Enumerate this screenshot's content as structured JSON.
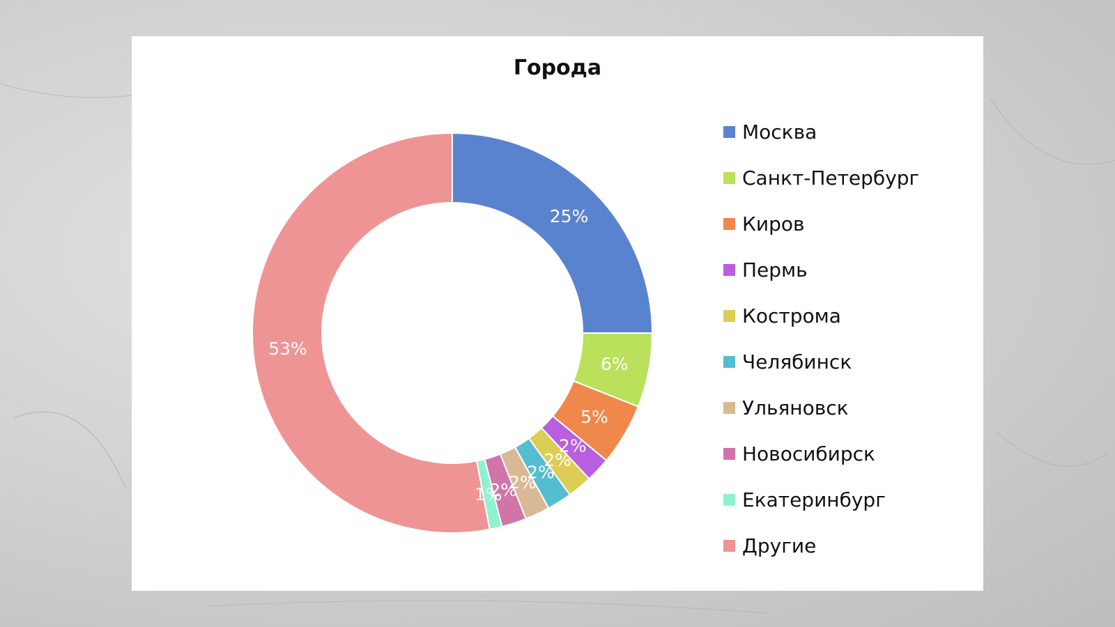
{
  "chart_data": {
    "type": "pie",
    "variant": "donut",
    "title": "Города",
    "legend_position": "right",
    "slices": [
      {
        "name": "Москва",
        "value": 25,
        "label": "25%",
        "color": "#5a83cf"
      },
      {
        "name": "Санкт-Петербург",
        "value": 6,
        "label": "6%",
        "color": "#bbe05b"
      },
      {
        "name": "Киров",
        "value": 5,
        "label": "5%",
        "color": "#f0884b"
      },
      {
        "name": "Пермь",
        "value": 2,
        "label": "2%",
        "color": "#b85fe0"
      },
      {
        "name": "Кострома",
        "value": 2,
        "label": "2%",
        "color": "#ddcd55"
      },
      {
        "name": "Челябинск",
        "value": 2,
        "label": "2%",
        "color": "#55bdd0"
      },
      {
        "name": "Ульяновск",
        "value": 2,
        "label": "2%",
        "color": "#d8b993"
      },
      {
        "name": "Новосибирск",
        "value": 2,
        "label": "2%",
        "color": "#d175a8"
      },
      {
        "name": "Екатеринбург",
        "value": 1,
        "label": "1%",
        "color": "#8ff2cf"
      },
      {
        "name": "Другие",
        "value": 53,
        "label": "53%",
        "color": "#ef9494"
      }
    ]
  }
}
